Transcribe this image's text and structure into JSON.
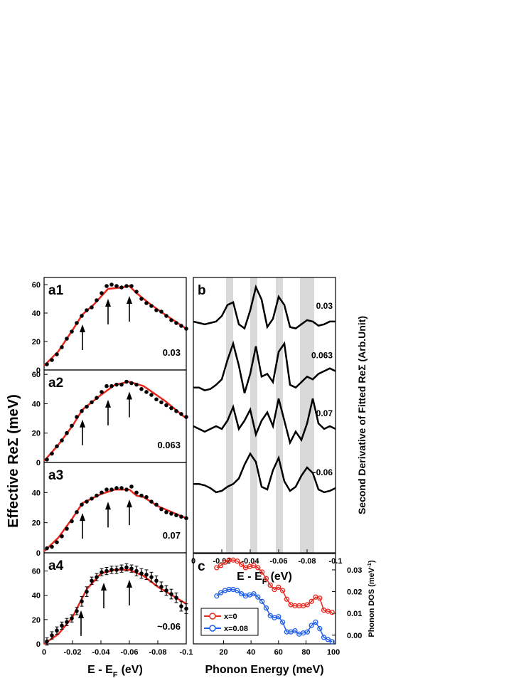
{
  "chart_data": [
    {
      "type": "scatter",
      "label": "a1",
      "doping": "0.03",
      "ylabel": "Effective ReΣ (meV)",
      "x": [
        -0.002,
        -0.0055,
        -0.009,
        -0.0125,
        -0.016,
        -0.0195,
        -0.023,
        -0.0265,
        -0.03,
        -0.0335,
        -0.037,
        -0.0405,
        -0.044,
        -0.0475,
        -0.051,
        -0.0545,
        -0.058,
        -0.0615,
        -0.065,
        -0.0685,
        -0.072,
        -0.0755,
        -0.079,
        -0.0825,
        -0.086,
        -0.0895,
        -0.093,
        -0.0965,
        -0.1
      ],
      "values": [
        4,
        7,
        11,
        16,
        22,
        27,
        33,
        38,
        42,
        44,
        49,
        54,
        59,
        60,
        59,
        58,
        59,
        59,
        55,
        50,
        47,
        45,
        42,
        41,
        38,
        35,
        33,
        31,
        29
      ],
      "fit": {
        "color": "#e8271f",
        "x": [
          0,
          -0.01,
          -0.02,
          -0.027,
          -0.035,
          -0.045,
          -0.055,
          -0.06,
          -0.065,
          -0.075,
          -0.085,
          -0.1
        ],
        "values": [
          3,
          13,
          28,
          39,
          46,
          57,
          58,
          59,
          54,
          46,
          39,
          29
        ]
      },
      "arrows": [
        -0.027,
        -0.045,
        -0.06
      ],
      "xlim": [
        0,
        -0.1
      ],
      "ylim": [
        0,
        65
      ],
      "yticks": [
        0,
        20,
        40,
        60
      ]
    },
    {
      "type": "scatter",
      "label": "a2",
      "doping": "0.063",
      "x": [
        -0.002,
        -0.0055,
        -0.009,
        -0.0125,
        -0.016,
        -0.0195,
        -0.023,
        -0.0265,
        -0.03,
        -0.0335,
        -0.037,
        -0.0405,
        -0.044,
        -0.0475,
        -0.051,
        -0.0545,
        -0.058,
        -0.0615,
        -0.065,
        -0.0685,
        -0.072,
        -0.0755,
        -0.079,
        -0.0825,
        -0.086,
        -0.0895,
        -0.093,
        -0.0965,
        -0.1
      ],
      "values": [
        2,
        6,
        11,
        15,
        20,
        25,
        31,
        35,
        38,
        41,
        44,
        48,
        52,
        52,
        53,
        53,
        55,
        54,
        53,
        50,
        48,
        46,
        43,
        41,
        39,
        37,
        35,
        33,
        31
      ],
      "fit": {
        "color": "#e8271f",
        "x": [
          0,
          -0.01,
          -0.02,
          -0.027,
          -0.04,
          -0.05,
          -0.06,
          -0.07,
          -0.085,
          -0.1
        ],
        "values": [
          1,
          12,
          25,
          36,
          46,
          53,
          55,
          52,
          42,
          30
        ]
      },
      "arrows": [
        -0.027,
        -0.045,
        -0.06
      ],
      "xlim": [
        0,
        -0.1
      ],
      "ylim": [
        0,
        63
      ],
      "yticks": [
        0,
        20,
        40,
        60
      ]
    },
    {
      "type": "scatter",
      "label": "a3",
      "doping": "0.07",
      "x": [
        -0.002,
        -0.0055,
        -0.009,
        -0.0125,
        -0.016,
        -0.0195,
        -0.023,
        -0.0265,
        -0.03,
        -0.0335,
        -0.037,
        -0.0405,
        -0.044,
        -0.0475,
        -0.051,
        -0.0545,
        -0.058,
        -0.0615,
        -0.065,
        -0.0685,
        -0.072,
        -0.0755,
        -0.079,
        -0.0825,
        -0.086,
        -0.0895,
        -0.093,
        -0.0965,
        -0.1
      ],
      "values": [
        3,
        4,
        7,
        11,
        16,
        21,
        27,
        32,
        34,
        36,
        38,
        40,
        42,
        42,
        43,
        43,
        42,
        44,
        40,
        38,
        37,
        34,
        32,
        29,
        27,
        26,
        25,
        24,
        23
      ],
      "fit": {
        "color": "#e8271f",
        "x": [
          0,
          -0.01,
          -0.02,
          -0.027,
          -0.04,
          -0.05,
          -0.06,
          -0.065,
          -0.07,
          -0.08,
          -0.09,
          -0.1
        ],
        "values": [
          1,
          10,
          23,
          33,
          39,
          42,
          42,
          38,
          37,
          31,
          27,
          23
        ]
      },
      "arrows": [
        -0.027,
        -0.045,
        -0.06
      ],
      "xlim": [
        0,
        -0.1
      ],
      "ylim": [
        0,
        60
      ],
      "yticks": [
        0,
        20,
        40
      ]
    },
    {
      "type": "scatter",
      "label": "a4",
      "doping": "~0.06",
      "xlabel": {
        "text": "E - E",
        "sub": "F",
        "end": "(eV)"
      },
      "x": [
        -0.002,
        -0.0055,
        -0.009,
        -0.0125,
        -0.016,
        -0.0195,
        -0.023,
        -0.0265,
        -0.03,
        -0.0335,
        -0.037,
        -0.0405,
        -0.044,
        -0.0475,
        -0.051,
        -0.0545,
        -0.058,
        -0.0615,
        -0.065,
        -0.0685,
        -0.072,
        -0.0755,
        -0.079,
        -0.0825,
        -0.086,
        -0.0895,
        -0.093,
        -0.0965,
        -0.1
      ],
      "values": [
        2,
        7,
        11,
        15,
        18,
        21,
        27,
        35,
        43,
        52,
        55,
        59,
        60,
        61,
        61,
        62,
        63,
        62,
        60,
        58,
        57,
        55,
        52,
        47,
        44,
        41,
        38,
        31,
        29
      ],
      "errors": [
        3,
        3,
        3,
        3,
        3,
        3,
        3,
        4,
        4,
        3,
        3,
        3,
        3,
        3,
        3,
        3,
        3,
        3,
        4,
        4,
        4,
        4,
        4,
        4,
        4,
        4,
        4,
        4,
        4
      ],
      "fit": {
        "color": "#e8271f",
        "x": [
          0,
          -0.01,
          -0.02,
          -0.03,
          -0.04,
          -0.05,
          -0.06,
          -0.07,
          -0.08,
          -0.09,
          -0.1
        ],
        "values": [
          0,
          8,
          22,
          45,
          58,
          61,
          61,
          56,
          47,
          40,
          33
        ]
      },
      "arrows": [
        -0.026,
        -0.042,
        -0.06
      ],
      "xlim": [
        0,
        -0.1
      ],
      "ylim": [
        0,
        75
      ],
      "yticks": [
        0,
        20,
        40,
        60
      ],
      "xticks": [
        0,
        -0.02,
        -0.04,
        -0.06,
        -0.08,
        -0.1
      ]
    },
    {
      "type": "line",
      "label": "b",
      "ylabel": "Second Derivative of Fitted ReΣ (Arb.Unit)",
      "xlabel": {
        "text": "E - E",
        "sub": "F",
        "end": "(eV)"
      },
      "xlim": [
        0,
        -0.1
      ],
      "ylim": [
        0,
        10
      ],
      "xticks": [
        0,
        -0.02,
        -0.04,
        -0.06,
        -0.08,
        -0.1
      ],
      "bands": [
        [
          -0.023,
          -0.028
        ],
        [
          -0.04,
          -0.045
        ],
        [
          -0.058,
          -0.063
        ],
        [
          -0.075,
          -0.085
        ]
      ],
      "x": [
        0,
        -0.004,
        -0.008,
        -0.012,
        -0.016,
        -0.02,
        -0.024,
        -0.028,
        -0.032,
        -0.036,
        -0.04,
        -0.044,
        -0.048,
        -0.052,
        -0.056,
        -0.06,
        -0.064,
        -0.068,
        -0.072,
        -0.076,
        -0.08,
        -0.084,
        -0.088,
        -0.092,
        -0.096,
        -0.1
      ],
      "series": [
        {
          "name": "0.03",
          "color": "#000000",
          "values": [
            8.4,
            8.35,
            8.3,
            8.35,
            8.4,
            8.6,
            9.0,
            9.1,
            8.3,
            8.15,
            8.8,
            9.65,
            9.2,
            8.2,
            8.5,
            9.3,
            9.0,
            8.2,
            8.15,
            8.3,
            8.45,
            8.4,
            8.25,
            8.3,
            8.4,
            8.4
          ]
        },
        {
          "name": "0.063",
          "color": "#000000",
          "values": [
            6.0,
            6.0,
            5.9,
            5.95,
            6.1,
            6.3,
            7.0,
            7.6,
            6.8,
            5.8,
            6.5,
            7.5,
            6.4,
            6.5,
            6.2,
            7.3,
            7.6,
            6.1,
            6.0,
            6.2,
            6.4,
            6.3,
            6.5,
            6.6,
            6.7,
            6.6
          ]
        },
        {
          "name": "0.07",
          "color": "#000000",
          "values": [
            4.6,
            4.5,
            4.4,
            4.5,
            4.6,
            4.5,
            4.8,
            5.3,
            4.5,
            4.8,
            5.2,
            4.3,
            4.8,
            5.1,
            4.6,
            5.6,
            4.8,
            4.0,
            4.4,
            4.1,
            4.7,
            5.6,
            4.7,
            4.5,
            4.6,
            4.5
          ]
        },
        {
          "name": "~0.06",
          "color": "#000000",
          "values": [
            2.5,
            2.5,
            2.45,
            2.35,
            2.2,
            2.25,
            2.4,
            2.5,
            2.7,
            3.2,
            3.6,
            3.3,
            2.4,
            2.3,
            3.0,
            3.45,
            2.6,
            2.25,
            2.4,
            2.8,
            3.1,
            2.9,
            2.3,
            2.2,
            2.25,
            2.35
          ]
        }
      ]
    },
    {
      "type": "line",
      "label": "c",
      "xlabel": {
        "text": "Phonon Energy (meV)"
      },
      "ylabel": {
        "text": "Phonon DOS (meV",
        "sup": "-1",
        "end": ")"
      },
      "yaxis_side": "right",
      "legend": "lower left",
      "markers": true,
      "xlim": [
        -2,
        101.5
      ],
      "ylim": [
        -0.004,
        0.0375
      ],
      "xticks": [
        20,
        40,
        60,
        80,
        100
      ],
      "yticks": [
        0.03,
        0.02,
        0.01,
        {
          "value": 0,
          "label": "0.00"
        }
      ],
      "x": [
        15,
        18,
        21,
        24,
        27,
        30,
        33,
        36,
        39,
        42,
        45,
        48,
        51,
        54,
        57,
        60,
        63,
        66,
        69,
        72,
        75,
        78,
        81,
        84,
        87,
        90,
        93,
        96,
        99
      ],
      "series": [
        {
          "name": "x=0",
          "color": "#e8271f",
          "values": [
            0.031,
            0.032,
            0.0335,
            0.0345,
            0.0345,
            0.034,
            0.0325,
            0.031,
            0.0315,
            0.032,
            0.031,
            0.029,
            0.026,
            0.023,
            0.021,
            0.022,
            0.0205,
            0.0165,
            0.014,
            0.0135,
            0.0135,
            0.0135,
            0.014,
            0.0155,
            0.0175,
            0.017,
            0.0115,
            0.011,
            0.0105
          ]
        },
        {
          "name": "x=0.08",
          "color": "#1f5ee8",
          "values": [
            0.018,
            0.0195,
            0.0205,
            0.021,
            0.021,
            0.0205,
            0.019,
            0.018,
            0.0185,
            0.019,
            0.0175,
            0.0155,
            0.0125,
            0.009,
            0.008,
            0.0085,
            0.006,
            0.0015,
            0.0015,
            0.002,
            0.0005,
            0.001,
            0.0015,
            0.0045,
            0.006,
            0.003,
            -0.001,
            -0.002,
            -0.003
          ]
        }
      ]
    }
  ]
}
